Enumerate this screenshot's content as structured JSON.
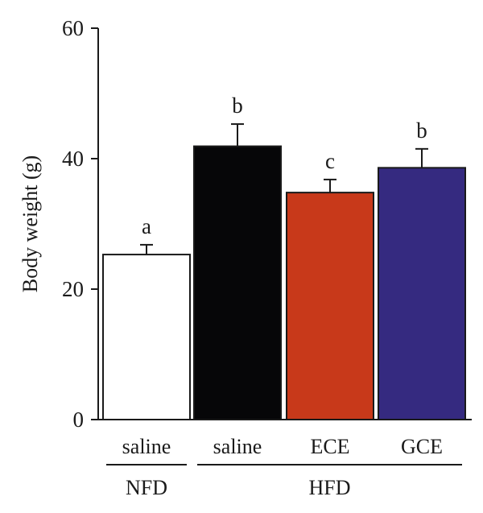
{
  "chart_data": {
    "type": "bar",
    "title": "",
    "xlabel": "",
    "ylabel": "Body weight (g)",
    "ylim": [
      0,
      60
    ],
    "yticks": [
      0,
      20,
      40,
      60
    ],
    "categories": [
      "saline",
      "saline",
      "ECE",
      "GCE"
    ],
    "groups": [
      {
        "label": "NFD",
        "categories": [
          0
        ]
      },
      {
        "label": "HFD",
        "categories": [
          1,
          2,
          3
        ]
      }
    ],
    "values": [
      25.3,
      41.9,
      34.8,
      38.6
    ],
    "errors": [
      1.5,
      3.4,
      2.0,
      2.9
    ],
    "significance": [
      "a",
      "b",
      "c",
      "b"
    ],
    "colors": [
      "#ffffff",
      "#060608",
      "#c8391a",
      "#352a80"
    ],
    "grid": false
  }
}
